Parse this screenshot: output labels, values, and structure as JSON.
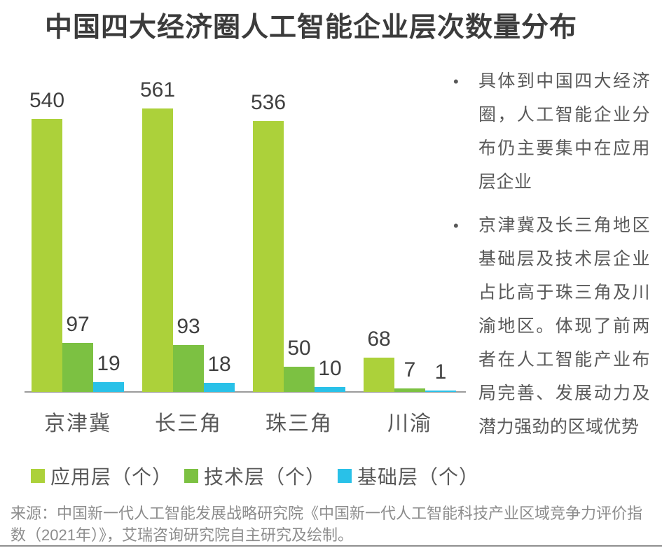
{
  "title": "中国四大经济圈人工智能企业层次数量分布",
  "chart_data": {
    "type": "bar",
    "title": "中国四大经济圈人工智能企业层次数量分布",
    "categories": [
      "京津冀",
      "长三角",
      "珠三角",
      "川渝"
    ],
    "series": [
      {
        "name": "应用层（个）",
        "color": "#ACD13A",
        "values": [
          540,
          561,
          536,
          68
        ]
      },
      {
        "name": "技术层（个）",
        "color": "#7CC142",
        "values": [
          97,
          93,
          50,
          7
        ]
      },
      {
        "name": "基础层（个）",
        "color": "#29C1E8",
        "values": [
          19,
          18,
          10,
          1
        ]
      }
    ],
    "xlabel": "",
    "ylabel": "",
    "ylim": [
      0,
      561
    ],
    "grid": false,
    "legend_position": "bottom",
    "value_labels": true,
    "axis_line_color": "#9C9C9C"
  },
  "notes": {
    "bullets": [
      "具体到中国四大经济圈，人工智能企业分布仍主要集中在应用层企业",
      "京津冀及长三角地区基础层及技术层企业占比高于珠三角及川渝地区。体现了前两者在人工智能产业布局完善、发展动力及潜力强劲的区域优势"
    ]
  },
  "source": "来源：中国新一代人工智能发展战略研究院《中国新一代人工智能科技产业区域竞争力评价指数（2021年）》，艾瑞咨询研究院自主研究及绘制。",
  "colors": {
    "title_text": "#3B3B3B",
    "value_label_text": "#404040",
    "axis_text": "#595959",
    "source_text": "#8C8C8C",
    "axis_line": "#9C9C9C",
    "bottom_rule": "#8F8F8F"
  }
}
